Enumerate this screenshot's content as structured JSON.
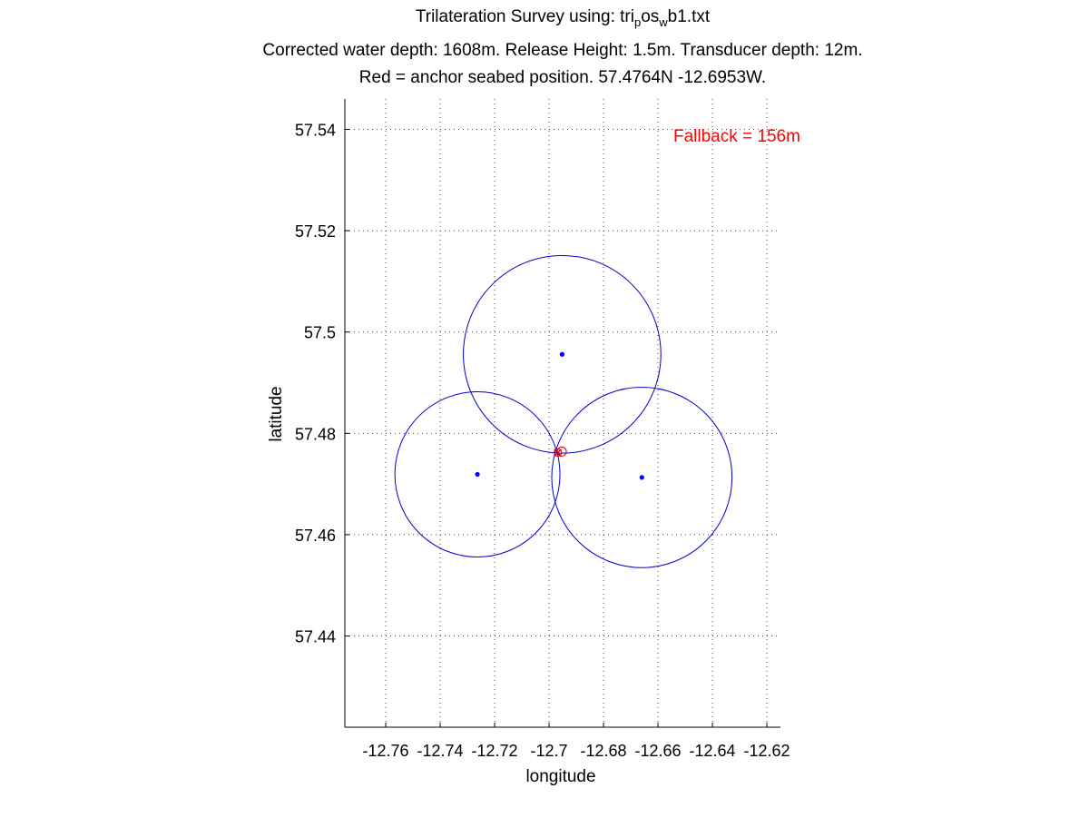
{
  "title": {
    "line1_prefix": "Trilateration Survey using: tri",
    "line1_sub1": "p",
    "line1_mid": "os",
    "line1_sub2": "w",
    "line1_suffix": "b1.txt",
    "line2": "Corrected water depth: 1608m. Release Height: 1.5m. Transducer depth: 12m.",
    "line3": "Red = anchor seabed position. 57.4764N -12.6953W."
  },
  "annotation": {
    "text": "Fallback =   156m",
    "color": "#ff0000"
  },
  "colors": {
    "circles": "#0000cc",
    "points": "#0000ff",
    "anchor": "#cc0000",
    "grid": "#444444"
  },
  "chart_data": {
    "type": "scatter",
    "xlabel": "longitude",
    "ylabel": "latitude",
    "xlim": [
      -12.775,
      -12.615
    ],
    "ylim": [
      57.422,
      57.546
    ],
    "xticks": [
      -12.76,
      -12.74,
      -12.72,
      -12.7,
      -12.68,
      -12.66,
      -12.64,
      -12.62
    ],
    "xtick_labels": [
      "-12.76",
      "-12.74",
      "-12.72",
      "-12.7",
      "-12.68",
      "-12.66",
      "-12.64",
      "-12.62"
    ],
    "yticks": [
      57.44,
      57.46,
      57.48,
      57.5,
      57.52,
      57.54
    ],
    "ytick_labels": [
      "57.44",
      "57.46",
      "57.48",
      "57.5",
      "57.52",
      "57.54"
    ],
    "grid": true,
    "survey_points": [
      {
        "lon": -12.6952,
        "lat": 57.4956
      },
      {
        "lon": -12.7263,
        "lat": 57.4719
      },
      {
        "lon": -12.6659,
        "lat": 57.4713
      }
    ],
    "range_circles": [
      {
        "center_lon": -12.6952,
        "center_lat": 57.4956,
        "radius_lat": 0.0195
      },
      {
        "center_lon": -12.7263,
        "center_lat": 57.4719,
        "radius_lat": 0.0163
      },
      {
        "center_lon": -12.6659,
        "center_lat": 57.4713,
        "radius_lat": 0.0178
      }
    ],
    "anchor_marks": [
      {
        "lon": -12.6953,
        "lat": 57.4764,
        "marker": "circle"
      },
      {
        "lon": -12.6968,
        "lat": 57.4762,
        "marker": "cross"
      }
    ]
  }
}
